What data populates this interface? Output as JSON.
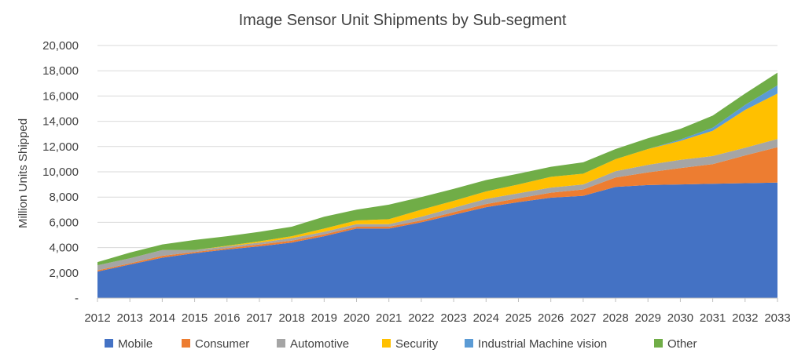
{
  "chart_data": {
    "type": "area",
    "stacked": true,
    "title": "Image Sensor Unit Shipments by Sub-segment",
    "xlabel": "",
    "ylabel": "Million Units Shipped",
    "ylim": [
      0,
      20000
    ],
    "yticks": [
      "-",
      "2,000",
      "4,000",
      "6,000",
      "8,000",
      "10,000",
      "12,000",
      "14,000",
      "16,000",
      "18,000",
      "20,000"
    ],
    "grid": true,
    "legend_position": "bottom",
    "categories": [
      "2012",
      "2013",
      "2014",
      "2015",
      "2016",
      "2017",
      "2018",
      "2019",
      "2020",
      "2021",
      "2022",
      "2023",
      "2024",
      "2025",
      "2026",
      "2027",
      "2028",
      "2029",
      "2030",
      "2031",
      "2032",
      "2033"
    ],
    "series": [
      {
        "name": "Mobile",
        "color": "#4472c4",
        "values": [
          2100,
          2650,
          3200,
          3550,
          3850,
          4100,
          4400,
          4900,
          5500,
          5500,
          6000,
          6600,
          7200,
          7600,
          7950,
          8100,
          8800,
          8950,
          9000,
          9050,
          9100,
          9150
        ]
      },
      {
        "name": "Consumer",
        "color": "#ed7d31",
        "values": [
          100,
          100,
          150,
          100,
          100,
          150,
          150,
          150,
          150,
          150,
          150,
          200,
          250,
          300,
          400,
          500,
          750,
          1000,
          1300,
          1550,
          2200,
          2800
        ]
      },
      {
        "name": "Automotive",
        "color": "#a5a5a5",
        "values": [
          400,
          400,
          450,
          150,
          150,
          150,
          200,
          200,
          200,
          200,
          300,
          350,
          400,
          400,
          400,
          400,
          500,
          600,
          650,
          650,
          600,
          650
        ]
      },
      {
        "name": "Security",
        "color": "#ffc000",
        "values": [
          0,
          0,
          0,
          0,
          50,
          100,
          150,
          250,
          300,
          400,
          550,
          550,
          600,
          700,
          850,
          850,
          950,
          1250,
          1500,
          2000,
          3000,
          3600
        ]
      },
      {
        "name": "Industrial  Machine vision",
        "color": "#5b9bd5",
        "values": [
          0,
          0,
          0,
          0,
          0,
          0,
          0,
          0,
          0,
          0,
          0,
          0,
          0,
          0,
          0,
          0,
          0,
          0,
          100,
          250,
          400,
          650
        ]
      },
      {
        "name": "Other",
        "color": "#70ad47",
        "values": [
          250,
          450,
          450,
          800,
          750,
          750,
          750,
          950,
          850,
          1150,
          1000,
          950,
          900,
          850,
          800,
          900,
          800,
          850,
          850,
          950,
          900,
          1000
        ]
      }
    ]
  }
}
